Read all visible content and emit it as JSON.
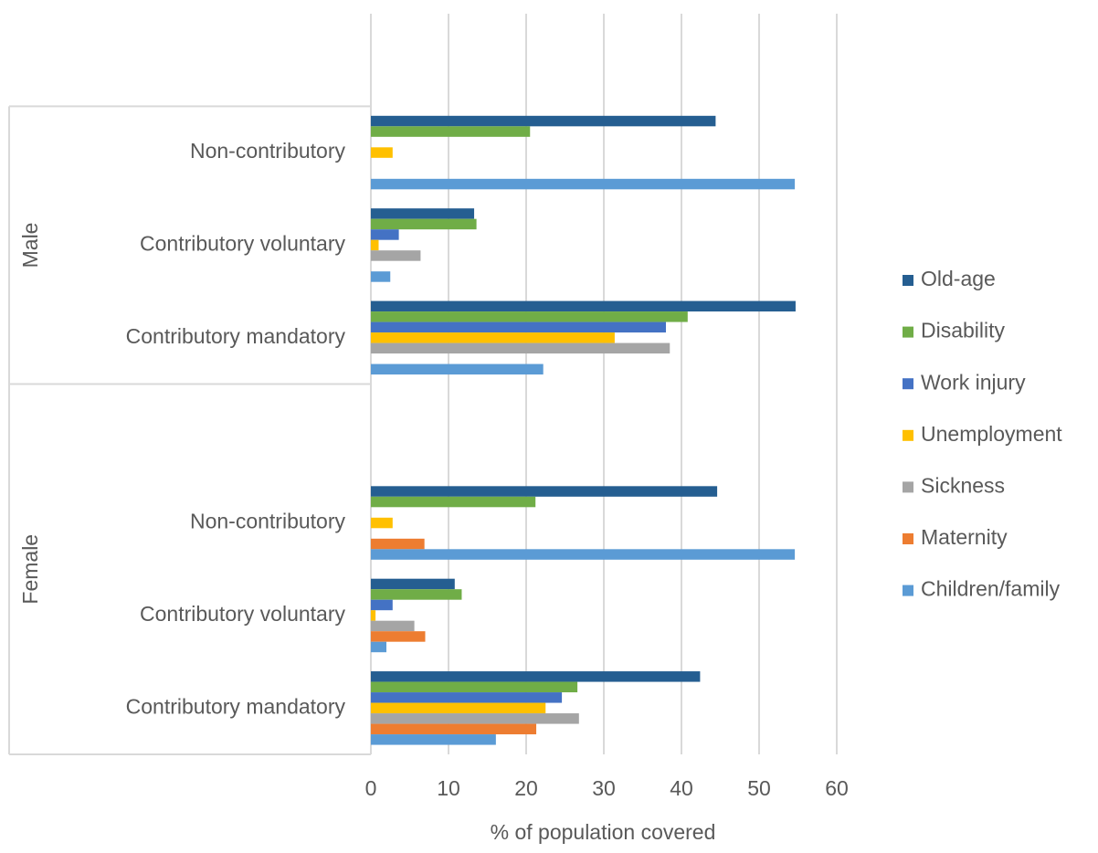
{
  "chart_data": {
    "type": "grouped_hbar",
    "x_label": "% of population covered",
    "categories": [
      null,
      "Non-contributory",
      "Contributory voluntary",
      "Contributory mandatory",
      null,
      "Non-contributory",
      "Contributory voluntary",
      "Contributory mandatory"
    ],
    "category_groups": [
      null,
      "Male",
      "Male",
      "Male",
      "Female",
      "Female",
      "Female",
      "Female"
    ],
    "series": [
      {
        "name": "Old-age",
        "color": "#255e91",
        "values": [
          null,
          44.4,
          13.3,
          54.7,
          null,
          44.6,
          10.8,
          42.4
        ]
      },
      {
        "name": "Disability",
        "color": "#70ad47",
        "values": [
          null,
          20.5,
          13.6,
          40.8,
          null,
          21.2,
          11.7,
          26.6
        ]
      },
      {
        "name": "Work injury",
        "color": "#4472c4",
        "values": [
          null,
          null,
          3.6,
          38.0,
          null,
          null,
          2.8,
          24.6
        ]
      },
      {
        "name": "Unemployment",
        "color": "#ffc000",
        "values": [
          null,
          2.8,
          1.0,
          31.4,
          null,
          2.8,
          0.6,
          22.5
        ]
      },
      {
        "name": "Sickness",
        "color": "#a5a5a5",
        "values": [
          null,
          null,
          6.4,
          38.5,
          null,
          null,
          5.6,
          26.8
        ]
      },
      {
        "name": "Maternity",
        "color": "#ed7d31",
        "values": [
          null,
          null,
          null,
          null,
          null,
          6.9,
          7.0,
          21.3
        ]
      },
      {
        "name": "Children/family",
        "color": "#5b9bd5",
        "values": [
          null,
          54.6,
          2.5,
          22.2,
          null,
          54.6,
          2.0,
          16.1
        ]
      }
    ],
    "xlim": [
      0,
      60
    ],
    "xticks": [
      0,
      10,
      20,
      30,
      40,
      50,
      60
    ],
    "grid": true,
    "legend": "right"
  }
}
